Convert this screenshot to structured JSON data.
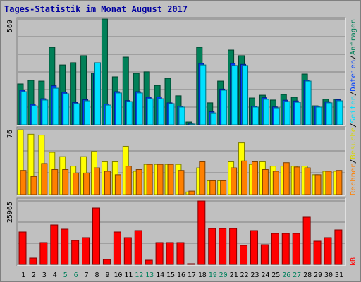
{
  "chart_data": [
    {
      "type": "bar",
      "title": "Tages-Statistik im Monat August 2017",
      "legend_separator": "/",
      "ylim": [
        0,
        569
      ],
      "yticks": [
        569
      ],
      "series": [
        {
          "name": "Anfragen",
          "color": "#008058",
          "values": [
            220,
            239,
            235,
            417,
            322,
            334,
            372,
            277,
            569,
            258,
            364,
            277,
            285,
            212,
            250,
            156,
            15,
            417,
            118,
            235,
            402,
            372,
            144,
            159,
            133,
            163,
            148,
            273,
            102,
            137,
            137
          ]
        },
        {
          "name": "Dateien",
          "color": "#0040ff",
          "values": [
            186,
            110,
            140,
            210,
            175,
            120,
            135,
            277,
            112,
            178,
            130,
            178,
            148,
            150,
            118,
            100,
            5,
            330,
            70,
            192,
            330,
            325,
            100,
            145,
            96,
            132,
            128,
            240,
            100,
            124,
            135
          ]
        },
        {
          "name": "Seiten",
          "color": "#00e0ff",
          "values": [
            178,
            102,
            133,
            197,
            167,
            114,
            129,
            334,
            106,
            171,
            125,
            171,
            140,
            140,
            114,
            95,
            4,
            322,
            64,
            186,
            319,
            319,
            95,
            137,
            91,
            125,
            121,
            235,
            95,
            118,
            129
          ]
        }
      ]
    },
    {
      "type": "bar",
      "ylim": [
        0,
        76
      ],
      "yticks": [
        76
      ],
      "series": [
        {
          "name": "Besuche",
          "color": "#ffff00",
          "values": [
            75,
            70,
            69,
            49,
            44,
            33,
            44,
            50,
            38,
            38,
            56,
            27,
            35,
            35,
            35,
            35,
            3,
            31,
            16,
            16,
            38,
            60,
            35,
            38,
            33,
            33,
            33,
            33,
            23,
            27,
            27
          ]
        },
        {
          "name": "Rechner",
          "color": "#ff8000",
          "values": [
            28,
            21,
            36,
            29,
            29,
            25,
            25,
            31,
            27,
            23,
            33,
            29,
            35,
            35,
            35,
            28,
            4,
            38,
            16,
            16,
            31,
            39,
            38,
            29,
            27,
            37,
            32,
            31,
            23,
            27,
            28
          ]
        }
      ]
    },
    {
      "type": "bar",
      "ylim": [
        0,
        25965
      ],
      "yticks": [
        25965
      ],
      "categories": [
        "1",
        "2",
        "3",
        "4",
        "5",
        "6",
        "7",
        "8",
        "9",
        "10",
        "11",
        "12",
        "13",
        "14",
        "15",
        "16",
        "17",
        "18",
        "19",
        "20",
        "21",
        "22",
        "23",
        "24",
        "25",
        "26",
        "27",
        "28",
        "29",
        "30",
        "31"
      ],
      "category_colors": [
        "#000",
        "#000",
        "#000",
        "#000",
        "#00805c",
        "#00805c",
        "#000",
        "#000",
        "#000",
        "#000",
        "#000",
        "#00805c",
        "#00805c",
        "#000",
        "#000",
        "#000",
        "#000",
        "#000",
        "#00805c",
        "#00805c",
        "#000",
        "#000",
        "#000",
        "#000",
        "#000",
        "#00805c",
        "#00805c",
        "#000",
        "#000",
        "#000",
        "#000"
      ],
      "series": [
        {
          "name": "kB",
          "color": "#ff0000",
          "values": [
            13271,
            2597,
            8944,
            16156,
            14425,
            9809,
            10963,
            23080,
            2020,
            13271,
            10963,
            13848,
            1731,
            8944,
            8944,
            8944,
            289,
            25965,
            14714,
            14714,
            14714,
            7790,
            13848,
            8078,
            12694,
            12694,
            12694,
            19330,
            9521,
            10963,
            14137
          ]
        }
      ]
    }
  ]
}
